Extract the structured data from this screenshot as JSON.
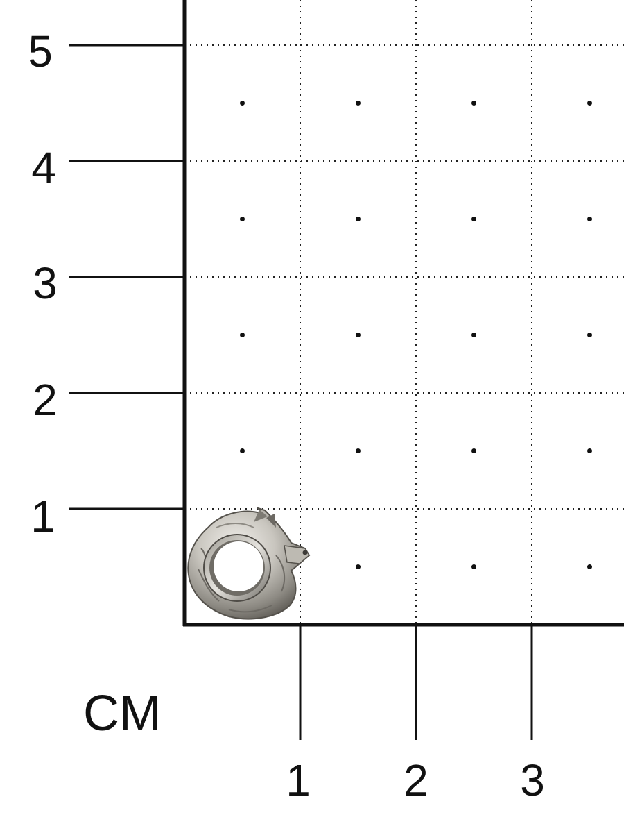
{
  "scale": {
    "unit": "CM",
    "y_ticks": [
      "1",
      "2",
      "3",
      "4",
      "5"
    ],
    "x_ticks": [
      "1",
      "2",
      "3"
    ]
  },
  "colors": {
    "background": "#ffffff",
    "axis": "#111111",
    "grid_dots": "#222222",
    "metal_light": "#e9e7e2",
    "metal_mid": "#b9b6ae",
    "metal_dark": "#5f5c56"
  },
  "object": {
    "icon": "wolf-head-ring-bead"
  }
}
